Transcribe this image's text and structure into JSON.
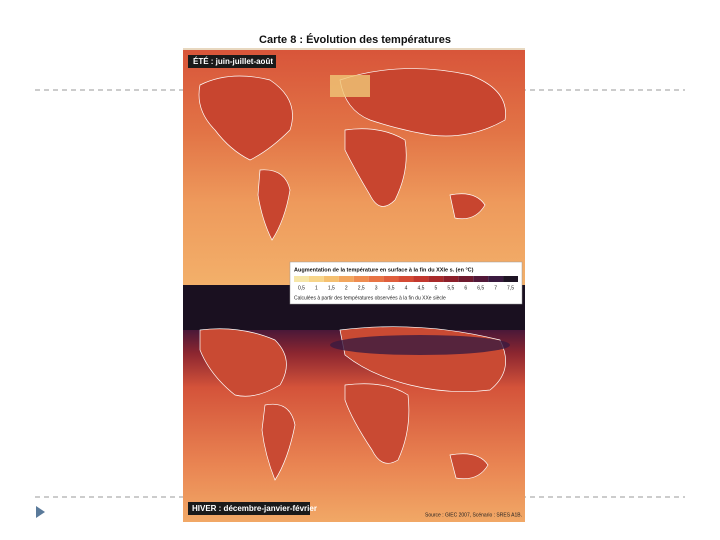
{
  "header": {
    "title": "Carte 8 : Évolution des températures"
  },
  "maps": [
    {
      "label": "ÉTÉ : juin-juillet-août"
    },
    {
      "label": "HIVER : décembre-janvier-février"
    }
  ],
  "legend": {
    "title": "Augmentation de la température en surface à la fin du XXIe s. (en °C)",
    "ticks": [
      "0,5",
      "1",
      "1,5",
      "2",
      "2,5",
      "3",
      "3,5",
      "4",
      "4,5",
      "5",
      "5,5",
      "6",
      "6,5",
      "7",
      "7,5"
    ],
    "colors": [
      "#f6e6a8",
      "#f7d58a",
      "#f5c070",
      "#f2a65e",
      "#ee8c50",
      "#e87445",
      "#df5e3c",
      "#d44a34",
      "#c2382e",
      "#a82a2a",
      "#8c1f2a",
      "#6e1a2e",
      "#521838",
      "#3a1a40",
      "#1e1424"
    ],
    "note": "Calculées à partir des températures observées à la fin du XXe siècle"
  },
  "source": "Source : GIEC 2007, Scénario : SRES A1B."
}
